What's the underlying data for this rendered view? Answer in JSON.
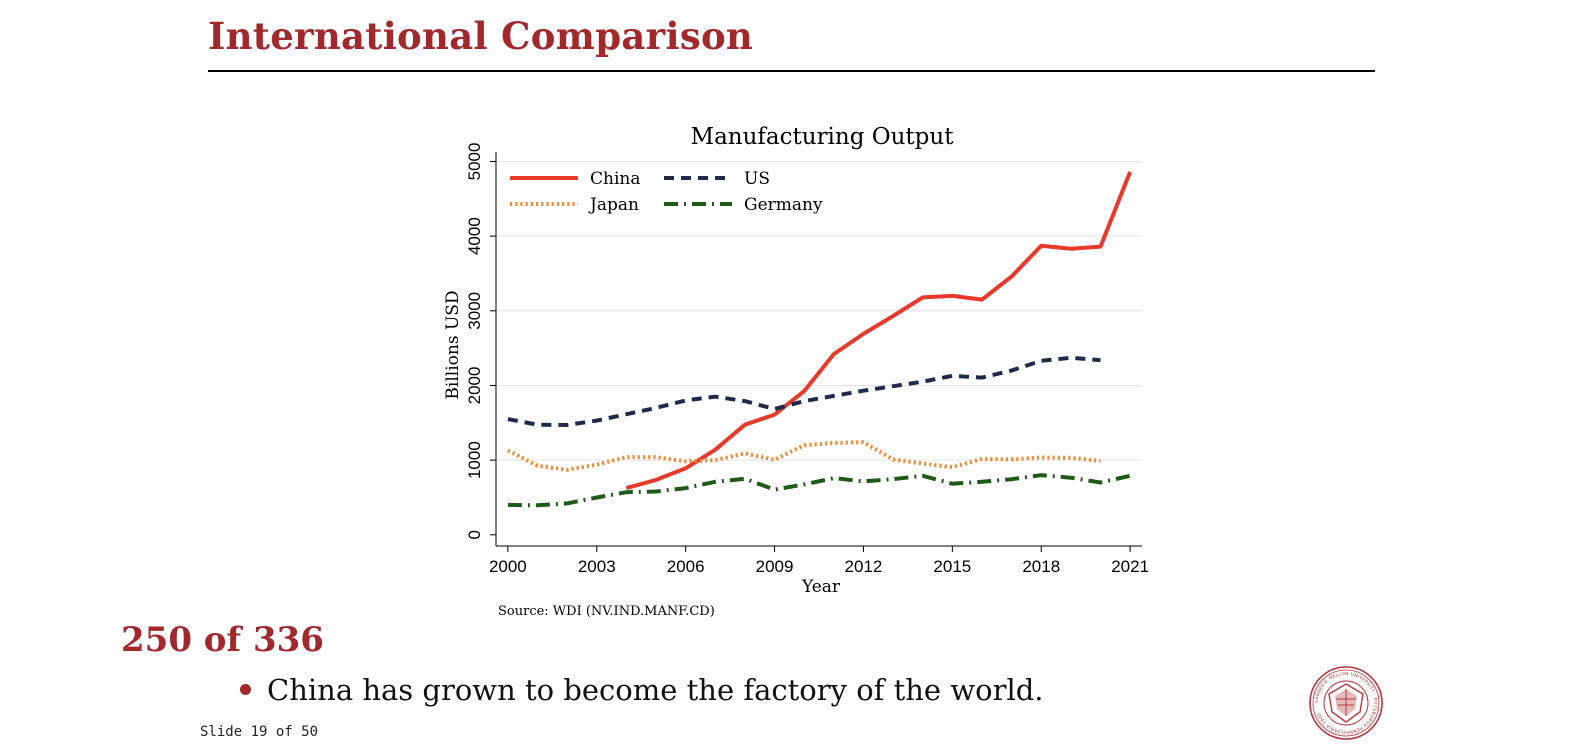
{
  "slide": {
    "title": "International Comparison",
    "counter": "250 of 336",
    "bullet": "China has grown to become the factory of the world.",
    "slide_number": "Slide 19 of 50",
    "accent_color": "#a2282c"
  },
  "logo": {
    "name": "carnegie-mellon-university-seal",
    "text": "CARNEGIE MELLON UNIVERSITY · PITTSBURGH PENNSYLVANIA 1900"
  },
  "chart_data": {
    "type": "line",
    "title": "Manufacturing Output",
    "xlabel": "Year",
    "ylabel": "Billions USD",
    "source": "Source: WDI (NV.IND.MANF.CD)",
    "xlim": [
      2000,
      2021
    ],
    "ylim": [
      0,
      5000
    ],
    "xticks": [
      2000,
      2003,
      2006,
      2009,
      2012,
      2015,
      2018,
      2021
    ],
    "yticks": [
      0,
      1000,
      2000,
      3000,
      4000,
      5000
    ],
    "grid": true,
    "legend_position": "top-left",
    "series": [
      {
        "name": "China",
        "color": "#e8392a",
        "style": "solid",
        "x": [
          2004,
          2005,
          2006,
          2007,
          2008,
          2009,
          2010,
          2011,
          2012,
          2013,
          2014,
          2015,
          2016,
          2017,
          2018,
          2019,
          2020,
          2021
        ],
        "y": [
          625,
          735,
          890,
          1140,
          1475,
          1610,
          1925,
          2420,
          2690,
          2930,
          3180,
          3200,
          3150,
          3460,
          3870,
          3830,
          3860,
          4860
        ]
      },
      {
        "name": "US",
        "color": "#1f2a4b",
        "style": "dashed",
        "x": [
          2000,
          2001,
          2002,
          2003,
          2004,
          2005,
          2006,
          2007,
          2008,
          2009,
          2010,
          2011,
          2012,
          2013,
          2014,
          2015,
          2016,
          2017,
          2018,
          2019,
          2020
        ],
        "y": [
          1550,
          1475,
          1470,
          1530,
          1615,
          1700,
          1800,
          1850,
          1790,
          1685,
          1790,
          1860,
          1930,
          1990,
          2050,
          2130,
          2105,
          2200,
          2330,
          2370,
          2340
        ]
      },
      {
        "name": "Japan",
        "color": "#f28a35",
        "style": "dotted",
        "x": [
          2000,
          2001,
          2002,
          2003,
          2004,
          2005,
          2006,
          2007,
          2008,
          2009,
          2010,
          2011,
          2012,
          2013,
          2014,
          2015,
          2016,
          2017,
          2018,
          2019,
          2020
        ],
        "y": [
          1130,
          925,
          870,
          940,
          1040,
          1040,
          985,
          1000,
          1090,
          1005,
          1200,
          1230,
          1240,
          1010,
          955,
          905,
          1015,
          1010,
          1035,
          1030,
          990
        ]
      },
      {
        "name": "Germany",
        "color": "#1f5a18",
        "style": "dash-dot",
        "x": [
          2000,
          2001,
          2002,
          2003,
          2004,
          2005,
          2006,
          2007,
          2008,
          2009,
          2010,
          2011,
          2012,
          2013,
          2014,
          2015,
          2016,
          2017,
          2018,
          2019,
          2020,
          2021
        ],
        "y": [
          400,
          395,
          420,
          500,
          570,
          580,
          625,
          710,
          750,
          605,
          675,
          760,
          715,
          745,
          790,
          685,
          710,
          745,
          800,
          765,
          700,
          790
        ]
      }
    ]
  }
}
